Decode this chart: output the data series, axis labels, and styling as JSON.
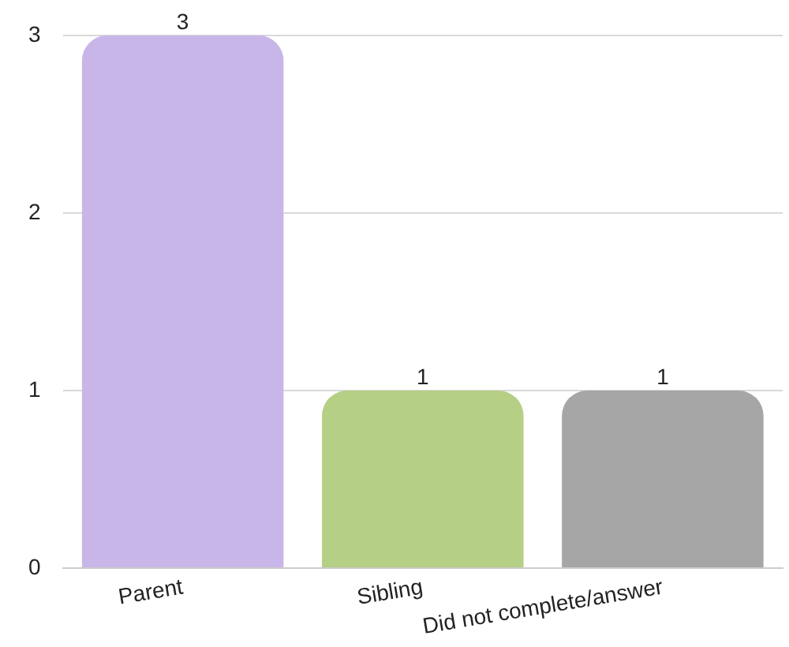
{
  "chart_data": {
    "type": "bar",
    "categories": [
      "Parent",
      "Sibling",
      "Did not complete/answer"
    ],
    "values": [
      3,
      1,
      1
    ],
    "colors": [
      "#c8b6e8",
      "#b5cf85",
      "#a6a6a6"
    ],
    "ylim": [
      0,
      3
    ],
    "yticks": [
      0,
      1,
      2,
      3
    ],
    "grid": "y",
    "data_labels": true,
    "legend": false
  }
}
